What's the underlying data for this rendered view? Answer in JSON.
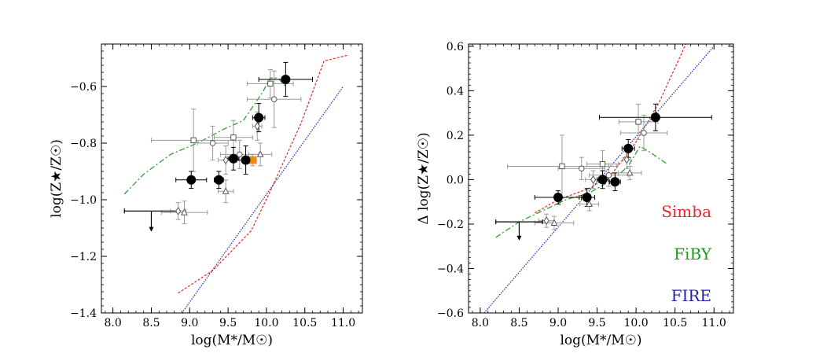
{
  "chart_data": [
    {
      "type": "scatter",
      "xlabel": "log(M*/M☉)",
      "ylabel": "log(Z★/Z☉)",
      "xlim": [
        7.85,
        11.25
      ],
      "ylim": [
        -1.4,
        -0.45
      ],
      "xticks": [
        8.0,
        8.5,
        9.0,
        9.5,
        10.0,
        10.5,
        11.0
      ],
      "xtick_labels": [
        "8.0",
        "8.5",
        "9.0",
        "9.5",
        "10.0",
        "10.5",
        "11.0"
      ],
      "yticks": [
        -1.4,
        -1.2,
        -1.0,
        -0.8,
        -0.6
      ],
      "ytick_labels": [
        "−1.4",
        "−1.2",
        "−1.0",
        "−0.8",
        "−0.6"
      ],
      "lines": [
        {
          "name": "Simba",
          "color": "#e8262b",
          "dash": "3,2",
          "x": [
            8.85,
            9.3,
            9.8,
            10.05,
            10.45,
            10.75,
            11.05
          ],
          "y": [
            -1.33,
            -1.25,
            -1.11,
            -0.97,
            -0.73,
            -0.51,
            -0.49
          ]
        },
        {
          "name": "FiBY",
          "color": "#1f9a1f",
          "dash": "7,3,2,3",
          "x": [
            8.15,
            8.4,
            8.75,
            9.1,
            9.45,
            9.7,
            9.95,
            10.05,
            10.15,
            10.25
          ],
          "y": [
            -0.98,
            -0.91,
            -0.84,
            -0.8,
            -0.75,
            -0.72,
            -0.62,
            -0.57,
            -0.57,
            -0.6
          ]
        },
        {
          "name": "FIRE",
          "color": "#2424a8",
          "dash": "1.5,1.5",
          "x": [
            8.9,
            11.0
          ],
          "y": [
            -1.4,
            -0.6
          ]
        }
      ],
      "points": [
        {
          "x": 9.02,
          "y": -0.93,
          "xerr": 0.2,
          "yerr": 0.03,
          "marker": "filled"
        },
        {
          "x": 9.38,
          "y": -0.93,
          "xerr": 0.06,
          "yerr": 0.03,
          "marker": "filled"
        },
        {
          "x": 9.57,
          "y": -0.855,
          "xerr": 0.07,
          "yerr": 0.04,
          "marker": "filled"
        },
        {
          "x": 9.73,
          "y": -0.86,
          "xerr": 0.12,
          "yerr": 0.05,
          "marker": "filled"
        },
        {
          "x": 9.9,
          "y": -0.71,
          "xerr": 0.08,
          "yerr": 0.05,
          "marker": "filled"
        },
        {
          "x": 10.25,
          "y": -0.575,
          "xerr": 0.35,
          "yerr": 0.06,
          "marker": "filled"
        },
        {
          "x": 9.82,
          "y": -0.86,
          "xerr": 0.05,
          "yerr": 0.02,
          "marker": "orange-square"
        },
        {
          "x": 9.05,
          "y": -0.79,
          "xerr": 0.55,
          "yerr": 0.11,
          "marker": "open-square"
        },
        {
          "x": 9.57,
          "y": -0.78,
          "xerr": 0.25,
          "yerr": 0.06,
          "marker": "open-square"
        },
        {
          "x": 10.05,
          "y": -0.59,
          "xerr": 0.3,
          "yerr": 0.05,
          "marker": "open-square"
        },
        {
          "x": 9.3,
          "y": -0.8,
          "xerr": 0.2,
          "yerr": 0.06,
          "marker": "open-circle"
        },
        {
          "x": 9.65,
          "y": -0.84,
          "xerr": 0.25,
          "yerr": 0.05,
          "marker": "open-circle"
        },
        {
          "x": 10.1,
          "y": -0.645,
          "xerr": 0.35,
          "yerr": 0.1,
          "marker": "open-circle"
        },
        {
          "x": 9.47,
          "y": -0.86,
          "xerr": 0.1,
          "yerr": 0.05,
          "marker": "open-diamond"
        },
        {
          "x": 9.88,
          "y": -0.74,
          "xerr": 0.06,
          "yerr": 0.05,
          "marker": "open-diamond"
        },
        {
          "x": 8.85,
          "y": -1.04,
          "xerr": 0.1,
          "yerr": 0.03,
          "marker": "open-diamond"
        },
        {
          "x": 9.47,
          "y": -0.97,
          "xerr": 0.1,
          "yerr": 0.04,
          "marker": "open-triangle"
        },
        {
          "x": 9.92,
          "y": -0.84,
          "xerr": 0.15,
          "yerr": 0.04,
          "marker": "open-triangle"
        },
        {
          "x": 8.93,
          "y": -1.045,
          "xerr": 0.3,
          "yerr": 0.04,
          "marker": "open-triangle"
        }
      ],
      "upper_limits": [
        {
          "x": 8.5,
          "y": -1.04,
          "xerr": 0.35,
          "length": 0.07
        }
      ]
    },
    {
      "type": "scatter",
      "xlabel": "log(M*/M☉)",
      "ylabel": "Δ log(Z★/Z☉)",
      "xlim": [
        7.85,
        11.25
      ],
      "ylim": [
        -0.6,
        0.61
      ],
      "xticks": [
        8.0,
        8.5,
        9.0,
        9.5,
        10.0,
        10.5,
        11.0
      ],
      "xtick_labels": [
        "8.0",
        "8.5",
        "9.0",
        "9.5",
        "10.0",
        "10.5",
        "11.0"
      ],
      "yticks": [
        -0.6,
        -0.4,
        -0.2,
        0.0,
        0.2,
        0.4,
        0.6
      ],
      "ytick_labels": [
        "−0.6",
        "−0.4",
        "−0.2",
        "0.0",
        "0.2",
        "0.4",
        "0.6"
      ],
      "lines": [
        {
          "name": "Simba",
          "color": "#e8262b",
          "dash": "3,2",
          "x": [
            8.7,
            9.0,
            9.4,
            9.7,
            10.0,
            10.3,
            10.6,
            10.65
          ],
          "y": [
            -0.15,
            -0.09,
            -0.04,
            0.03,
            0.17,
            0.35,
            0.58,
            0.62
          ]
        },
        {
          "name": "FiBY",
          "color": "#1f9a1f",
          "dash": "7,3,2,3",
          "x": [
            8.2,
            8.5,
            8.8,
            9.1,
            9.4,
            9.7,
            9.9,
            10.05,
            10.15,
            10.4
          ],
          "y": [
            -0.26,
            -0.19,
            -0.14,
            -0.09,
            -0.06,
            0.0,
            0.06,
            0.15,
            0.13,
            0.07
          ]
        },
        {
          "name": "FIRE",
          "color": "#2424a8",
          "dash": "1.5,1.5",
          "x": [
            8.05,
            11.0
          ],
          "y": [
            -0.6,
            0.6
          ]
        }
      ],
      "points": [
        {
          "x": 9.0,
          "y": -0.08,
          "xerr": 0.3,
          "yerr": 0.03,
          "marker": "filled"
        },
        {
          "x": 9.37,
          "y": -0.08,
          "xerr": 0.1,
          "yerr": 0.04,
          "marker": "filled"
        },
        {
          "x": 9.57,
          "y": 0.0,
          "xerr": 0.07,
          "yerr": 0.04,
          "marker": "filled"
        },
        {
          "x": 9.73,
          "y": -0.01,
          "xerr": 0.07,
          "yerr": 0.04,
          "marker": "filled"
        },
        {
          "x": 9.9,
          "y": 0.14,
          "xerr": 0.08,
          "yerr": 0.04,
          "marker": "filled"
        },
        {
          "x": 10.25,
          "y": 0.28,
          "xerr": 0.72,
          "yerr": 0.06,
          "marker": "filled"
        },
        {
          "x": 9.05,
          "y": 0.06,
          "xerr": 0.7,
          "yerr": 0.14,
          "marker": "open-square"
        },
        {
          "x": 9.57,
          "y": 0.07,
          "xerr": 0.2,
          "yerr": 0.06,
          "marker": "open-square"
        },
        {
          "x": 10.03,
          "y": 0.26,
          "xerr": 0.25,
          "yerr": 0.08,
          "marker": "open-square"
        },
        {
          "x": 9.3,
          "y": 0.05,
          "xerr": 0.3,
          "yerr": 0.05,
          "marker": "open-circle"
        },
        {
          "x": 9.65,
          "y": 0.02,
          "xerr": 0.25,
          "yerr": 0.05,
          "marker": "open-circle"
        },
        {
          "x": 10.1,
          "y": 0.21,
          "xerr": 0.3,
          "yerr": 0.08,
          "marker": "open-circle"
        },
        {
          "x": 9.45,
          "y": 0.0,
          "xerr": 0.1,
          "yerr": 0.04,
          "marker": "open-diamond"
        },
        {
          "x": 9.88,
          "y": 0.09,
          "xerr": 0.05,
          "yerr": 0.04,
          "marker": "open-diamond"
        },
        {
          "x": 8.85,
          "y": -0.185,
          "xerr": 0.1,
          "yerr": 0.03,
          "marker": "open-diamond"
        },
        {
          "x": 9.4,
          "y": -0.11,
          "xerr": 0.12,
          "yerr": 0.03,
          "marker": "open-triangle"
        },
        {
          "x": 9.92,
          "y": 0.03,
          "xerr": 0.15,
          "yerr": 0.03,
          "marker": "open-triangle"
        },
        {
          "x": 8.95,
          "y": -0.195,
          "xerr": 0.25,
          "yerr": 0.03,
          "marker": "open-triangle"
        }
      ],
      "upper_limits": [
        {
          "x": 8.5,
          "y": -0.19,
          "xerr": 0.3,
          "length": 0.08
        }
      ],
      "legend": {
        "placement": "bottom-right",
        "entries": [
          {
            "label": "Simba",
            "color": "#e8262b"
          },
          {
            "label": "FiBY",
            "color": "#1f9a1f"
          },
          {
            "label": "FIRE",
            "color": "#2424a8"
          }
        ]
      }
    }
  ]
}
